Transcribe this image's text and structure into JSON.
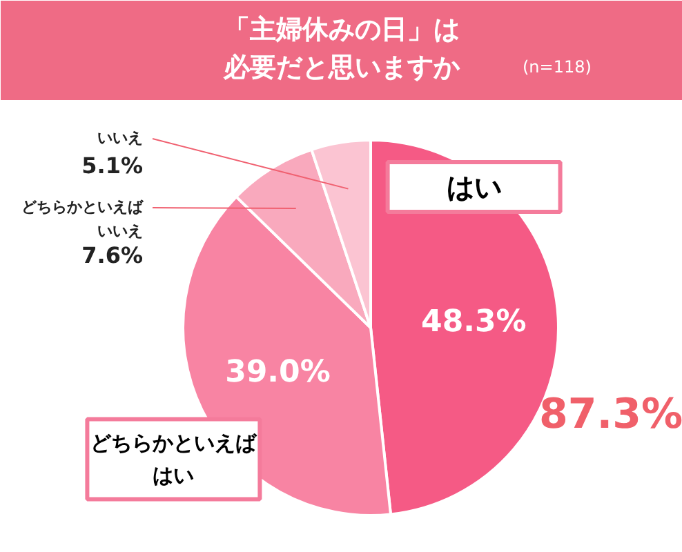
{
  "chart_data": {
    "type": "pie",
    "title": "「主婦休みの日」は必要だと思いますか",
    "subtitle": "(n=118)",
    "categories": [
      "はい",
      "どちらかといえばはい",
      "どちらかといえばいいえ",
      "いいえ"
    ],
    "values": [
      48.3,
      39.0,
      7.6,
      5.1
    ],
    "value_labels": [
      "48.3%",
      "39.0%",
      "7.6%",
      "5.1%"
    ],
    "colors": [
      "#f55a85",
      "#f884a3",
      "#f9a9bd",
      "#fbc4d2"
    ],
    "legend": false,
    "annotations": [
      "87.3%"
    ]
  }
}
